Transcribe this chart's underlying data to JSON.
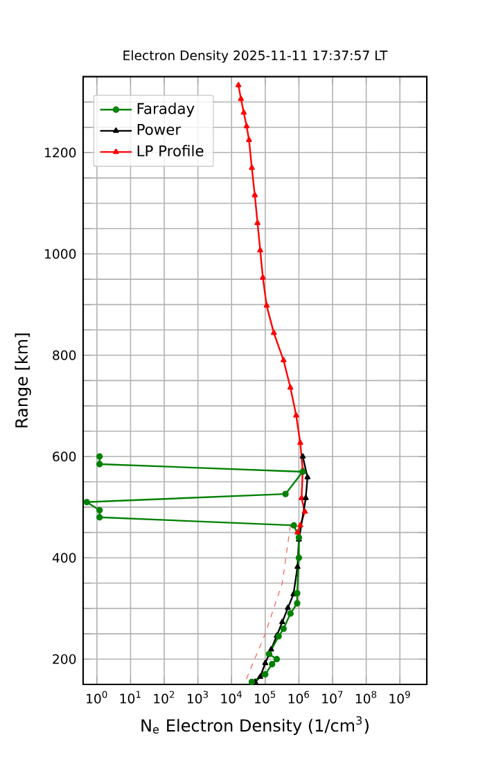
{
  "chart_data": {
    "type": "line",
    "title": "Electron Density 2025-11-11 17:37:57 LT",
    "xlabel": "N$_{e}$ Electron Density (1/cm$^{3}$)",
    "ylabel": "Range [km]",
    "log": "x",
    "grid": true,
    "legend": "top left",
    "xlim": [
      0.39,
      6300000000
    ],
    "ylim": [
      150,
      1350
    ],
    "xticks": [
      {
        "value": 1,
        "label": "10$^{0}$"
      },
      {
        "value": 10,
        "label": "10$^{1}$"
      },
      {
        "value": 100,
        "label": "10$^{2}$"
      },
      {
        "value": 1000,
        "label": "10$^{3}$"
      },
      {
        "value": 10000,
        "label": "10$^{4}$"
      },
      {
        "value": 100000,
        "label": "10$^{5}$"
      },
      {
        "value": 1000000,
        "label": "10$^{6}$"
      },
      {
        "value": 10000000,
        "label": "10$^{7}$"
      },
      {
        "value": 100000000,
        "label": "10$^{8}$"
      },
      {
        "value": 1000000000,
        "label": "10$^{9}$"
      }
    ],
    "yticks": [
      200,
      {
        "value": 250,
        "label": null
      },
      {
        "value": 300,
        "label": null
      },
      {
        "value": 350,
        "label": null
      },
      400,
      {
        "value": 450,
        "label": null
      },
      {
        "value": 500,
        "label": null
      },
      {
        "value": 550,
        "label": null
      },
      600,
      {
        "value": 650,
        "label": null
      },
      {
        "value": 700,
        "label": null
      },
      {
        "value": 750,
        "label": null
      },
      800,
      {
        "value": 850,
        "label": null
      },
      {
        "value": 900,
        "label": null
      },
      {
        "value": 950,
        "label": null
      },
      1000,
      {
        "value": 1050,
        "label": null
      },
      {
        "value": 1100,
        "label": null
      },
      {
        "value": 1150,
        "label": null
      },
      1200,
      {
        "value": 1250,
        "label": null
      },
      {
        "value": 1300,
        "label": null
      }
    ],
    "series": [
      {
        "name": "Faraday",
        "color": "#008000",
        "marker": "circle",
        "x": [
          1.2,
          1.2,
          1300000,
          400000,
          0.5,
          1.2,
          1.2,
          710000,
          1000000,
          1000000,
          890000,
          890000,
          560000,
          350000,
          250000,
          130000,
          220000,
          160000,
          100000,
          40000
        ],
        "values": [
          600,
          585,
          570,
          526,
          510,
          494,
          480,
          464,
          440,
          400,
          330,
          310,
          290,
          260,
          245,
          210,
          200,
          190,
          170,
          155
        ]
      },
      {
        "name": "Power",
        "color": "#000000",
        "marker": "triangle",
        "x": [
          1300000,
          1800000,
          1600000,
          1000000,
          910000,
          690000,
          470000,
          320000,
          220000,
          150000,
          100000,
          71000,
          50000
        ],
        "values": [
          600,
          559,
          518,
          436,
          382,
          328,
          301,
          273,
          246,
          219,
          192,
          165,
          155
        ]
      },
      {
        "name": "LP Profile",
        "color": "#ff0000",
        "marker": "triangle",
        "x": [
          16000,
          19000,
          23000,
          28000,
          33000,
          40000,
          49000,
          59000,
          71000,
          85000,
          110000,
          180000,
          350000,
          560000,
          830000,
          1100000,
          1300000,
          1200000,
          1500000,
          1100000,
          910000
        ],
        "values": [
          1333,
          1306,
          1279,
          1252,
          1225,
          1170,
          1116,
          1061,
          1007,
          953,
          898,
          844,
          790,
          736,
          681,
          627,
          573,
          518,
          491,
          464,
          450
        ]
      },
      {
        "color": "#ff6666",
        "marker": "none",
        "line_style": "dashed",
        "x": [
          560000,
          320000,
          100000,
          25000
        ],
        "values": [
          464,
          350,
          250,
          154
        ]
      }
    ]
  }
}
